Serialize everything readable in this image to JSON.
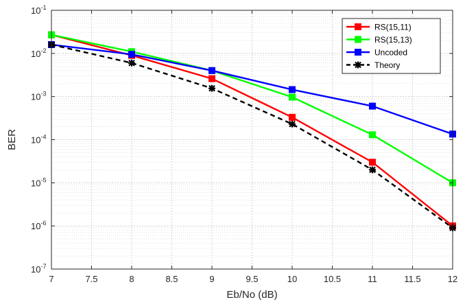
{
  "chart_data": {
    "type": "line",
    "title": "",
    "xlabel": "Eb/No (dB)",
    "ylabel": "BER",
    "xlim": [
      7,
      12
    ],
    "ylim": [
      1e-07,
      0.1
    ],
    "yscale": "log",
    "grid": true,
    "minor_grid": true,
    "legend_position": "top-right",
    "x": [
      7,
      8,
      9,
      10,
      11,
      12
    ],
    "x_ticks": [
      7,
      7.5,
      8,
      8.5,
      9,
      9.5,
      10,
      10.5,
      11,
      11.5,
      12
    ],
    "x_tick_labels": [
      "7",
      "7.5",
      "8",
      "8.5",
      "9",
      "9.5",
      "10",
      "10.5",
      "11",
      "11.5",
      "12"
    ],
    "y_ticks": [
      -1,
      -2,
      -3,
      -4,
      -5,
      -6,
      -7
    ],
    "y_tick_base": "10",
    "y_tick_exponents": [
      "-1",
      "-2",
      "-3",
      "-4",
      "-5",
      "-6",
      "-7"
    ],
    "series": [
      {
        "name": "RS(15,11)",
        "color": "#ff0000",
        "dash": false,
        "marker": "square",
        "values": [
          0.027,
          0.009,
          0.0026,
          0.00033,
          3e-05,
          1e-06
        ]
      },
      {
        "name": "RS(15,13)",
        "color": "#00ff00",
        "dash": false,
        "marker": "square",
        "values": [
          0.027,
          0.011,
          0.004,
          0.00097,
          0.00013,
          1e-05
        ]
      },
      {
        "name": "Uncoded",
        "color": "#0000ff",
        "dash": false,
        "marker": "square",
        "values": [
          0.016,
          0.0095,
          0.004,
          0.00145,
          0.0006,
          0.000135
        ]
      },
      {
        "name": "Theory",
        "color": "#000000",
        "dash": true,
        "marker": "asterisk",
        "values": [
          0.016,
          0.006,
          0.00155,
          0.00023,
          2e-05,
          9e-07
        ]
      }
    ]
  }
}
